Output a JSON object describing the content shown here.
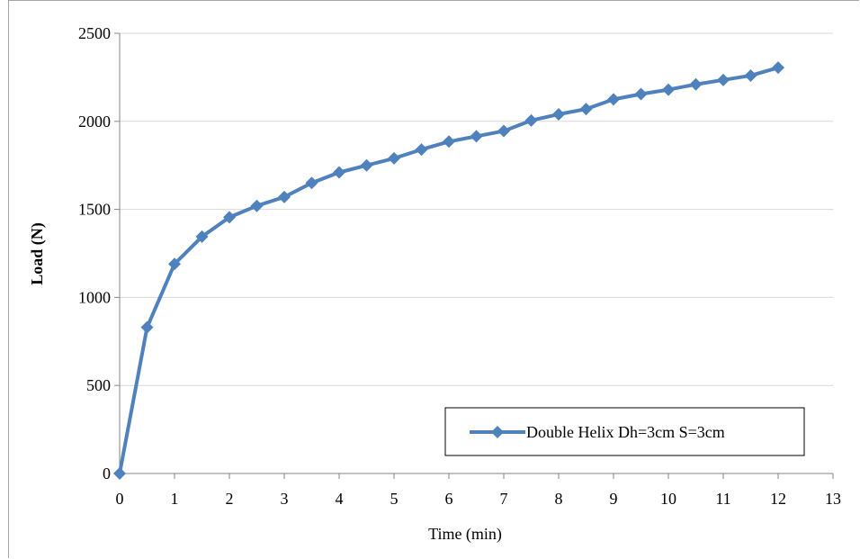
{
  "chart_data": {
    "type": "line",
    "title": "",
    "xlabel": "Time (min)",
    "ylabel": "Load (N)",
    "xlim": [
      0,
      13
    ],
    "ylim": [
      0,
      2500
    ],
    "x_ticks": [
      "0",
      "1",
      "2",
      "3",
      "4",
      "5",
      "6",
      "7",
      "8",
      "9",
      "10",
      "11",
      "12",
      "13"
    ],
    "y_ticks": [
      "0",
      "500",
      "1000",
      "1500",
      "2000",
      "2500"
    ],
    "grid": "horizontal",
    "legend_position": "bottom-right",
    "series": [
      {
        "name": "Double Helix Dh=3cm S=3cm",
        "color": "#4f81bd",
        "marker": "diamond",
        "x": [
          0,
          0.5,
          1,
          1.5,
          2,
          2.5,
          3,
          3.5,
          4,
          4.5,
          5,
          5.5,
          6,
          6.5,
          7,
          7.5,
          8,
          8.5,
          9,
          9.5,
          10,
          10.5,
          11,
          11.5,
          12
        ],
        "y": [
          0,
          830,
          1190,
          1345,
          1455,
          1520,
          1570,
          1650,
          1710,
          1750,
          1790,
          1840,
          1885,
          1915,
          1945,
          2005,
          2040,
          2070,
          2125,
          2155,
          2180,
          2210,
          2235,
          2260,
          2305
        ]
      }
    ]
  }
}
